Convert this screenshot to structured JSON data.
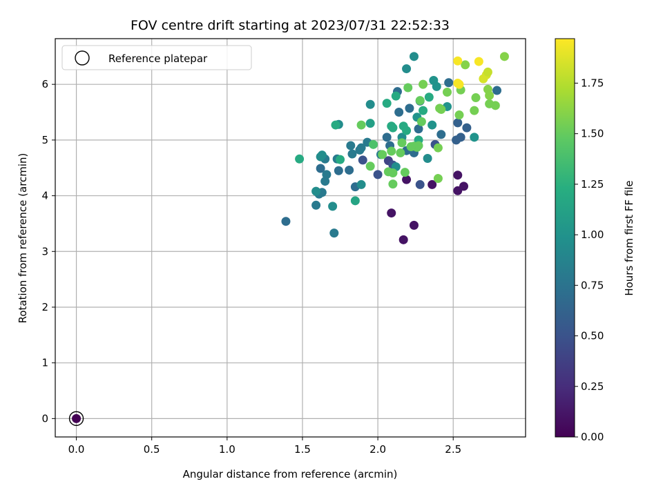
{
  "chart_data": {
    "type": "scatter",
    "title": "FOV centre drift starting at 2023/07/31 22:52:33",
    "xlabel": "Angular distance from reference (arcmin)",
    "ylabel": "Rotation from reference (arcmin)",
    "xlim": [
      -0.14,
      2.98
    ],
    "ylim": [
      -0.33,
      6.82
    ],
    "xticks": [
      0.0,
      0.5,
      1.0,
      1.5,
      2.0,
      2.5
    ],
    "xtick_labels": [
      "0.0",
      "0.5",
      "1.0",
      "1.5",
      "2.0",
      "2.5"
    ],
    "yticks": [
      0,
      1,
      2,
      3,
      4,
      5,
      6
    ],
    "ytick_labels": [
      "0",
      "1",
      "2",
      "3",
      "4",
      "5",
      "6"
    ],
    "grid": true,
    "colormap": "viridis",
    "colorbar": {
      "label": "Hours from first FF file",
      "range": [
        0.0,
        1.97
      ],
      "ticks": [
        0.0,
        0.25,
        0.5,
        0.75,
        1.0,
        1.25,
        1.5,
        1.75
      ],
      "tick_labels": [
        "0.00",
        "0.25",
        "0.50",
        "0.75",
        "1.00",
        "1.25",
        "1.50",
        "1.75"
      ]
    },
    "legend": {
      "position": "upper-left",
      "entries": [
        "Reference platepar"
      ]
    },
    "reference_point": {
      "x": 0.0,
      "y": 0.0,
      "hours": 0.0
    },
    "points": [
      [
        2.09,
        3.69,
        0.1
      ],
      [
        2.24,
        3.47,
        0.1
      ],
      [
        2.17,
        3.21,
        0.1
      ],
      [
        2.19,
        4.29,
        0.1
      ],
      [
        2.36,
        4.2,
        0.1
      ],
      [
        2.53,
        4.37,
        0.1
      ],
      [
        2.53,
        4.09,
        0.1
      ],
      [
        2.57,
        4.17,
        0.1
      ],
      [
        2.07,
        4.63,
        0.4
      ],
      [
        2.1,
        4.55,
        0.5
      ],
      [
        2.28,
        4.2,
        0.5
      ],
      [
        2.0,
        4.38,
        0.5
      ],
      [
        1.9,
        4.64,
        0.5
      ],
      [
        2.38,
        4.92,
        0.5
      ],
      [
        2.53,
        5.31,
        0.6
      ],
      [
        2.52,
        5.0,
        0.6
      ],
      [
        2.55,
        5.05,
        0.6
      ],
      [
        2.59,
        5.22,
        0.6
      ],
      [
        1.39,
        3.54,
        0.7
      ],
      [
        1.85,
        4.16,
        0.7
      ],
      [
        1.74,
        4.45,
        0.7
      ],
      [
        1.81,
        4.46,
        0.7
      ],
      [
        1.62,
        4.49,
        0.7
      ],
      [
        2.06,
        5.05,
        0.7
      ],
      [
        2.08,
        4.9,
        0.7
      ],
      [
        2.19,
        4.81,
        0.7
      ],
      [
        2.24,
        4.77,
        0.7
      ],
      [
        2.14,
        5.5,
        0.7
      ],
      [
        2.13,
        5.87,
        0.7
      ],
      [
        2.28,
        5.7,
        0.7
      ],
      [
        2.21,
        5.57,
        0.7
      ],
      [
        2.27,
        5.2,
        0.7
      ],
      [
        2.42,
        5.1,
        0.7
      ],
      [
        2.47,
        6.03,
        0.7
      ],
      [
        2.79,
        5.89,
        0.7
      ],
      [
        1.65,
        4.26,
        0.8
      ],
      [
        1.66,
        4.38,
        0.8
      ],
      [
        1.59,
        3.83,
        0.8
      ],
      [
        1.61,
        4.03,
        0.8
      ],
      [
        1.63,
        4.06,
        0.8
      ],
      [
        1.71,
        3.33,
        0.8
      ],
      [
        1.88,
        4.82,
        0.8
      ],
      [
        1.82,
        4.9,
        0.8
      ],
      [
        1.93,
        4.96,
        0.8
      ],
      [
        1.89,
        4.86,
        0.8
      ],
      [
        2.02,
        4.74,
        0.8
      ],
      [
        1.83,
        4.75,
        0.8
      ],
      [
        1.65,
        4.66,
        0.8
      ],
      [
        1.73,
        4.66,
        0.8
      ],
      [
        2.24,
        6.5,
        0.95
      ],
      [
        2.19,
        6.28,
        0.95
      ],
      [
        1.95,
        5.64,
        0.95
      ],
      [
        1.74,
        5.28,
        0.95
      ],
      [
        1.63,
        4.73,
        0.95
      ],
      [
        1.62,
        4.7,
        0.95
      ],
      [
        1.59,
        4.08,
        0.95
      ],
      [
        1.7,
        3.81,
        0.95
      ],
      [
        1.85,
        3.91,
        1.15
      ],
      [
        1.89,
        4.2,
        0.95
      ],
      [
        1.95,
        5.3,
        1.1
      ],
      [
        2.16,
        5.05,
        0.95
      ],
      [
        2.12,
        4.52,
        0.95
      ],
      [
        2.33,
        4.67,
        0.95
      ],
      [
        2.37,
        6.07,
        1.0
      ],
      [
        2.39,
        5.96,
        1.0
      ],
      [
        2.36,
        5.27,
        1.0
      ],
      [
        2.46,
        5.6,
        1.0
      ],
      [
        2.64,
        5.05,
        1.0
      ],
      [
        2.26,
        5.41,
        1.0
      ],
      [
        1.48,
        4.66,
        1.2
      ],
      [
        1.72,
        5.27,
        1.2
      ],
      [
        1.75,
        4.65,
        1.2
      ],
      [
        2.09,
        5.25,
        1.2
      ],
      [
        2.1,
        5.22,
        1.2
      ],
      [
        2.19,
        5.17,
        1.2
      ],
      [
        2.17,
        5.25,
        1.2
      ],
      [
        2.3,
        5.53,
        1.2
      ],
      [
        2.27,
        5.0,
        1.2
      ],
      [
        2.12,
        5.79,
        1.2
      ],
      [
        2.06,
        5.66,
        1.2
      ],
      [
        2.34,
        5.77,
        1.2
      ],
      [
        1.89,
        5.27,
        1.5
      ],
      [
        1.97,
        4.92,
        1.4
      ],
      [
        1.95,
        4.53,
        1.5
      ],
      [
        2.03,
        4.74,
        1.5
      ],
      [
        2.09,
        4.8,
        1.5
      ],
      [
        2.07,
        4.43,
        1.5
      ],
      [
        2.1,
        4.41,
        1.5
      ],
      [
        2.15,
        4.77,
        1.5
      ],
      [
        2.18,
        4.42,
        1.5
      ],
      [
        2.1,
        4.21,
        1.5
      ],
      [
        2.16,
        4.95,
        1.5
      ],
      [
        2.24,
        4.89,
        1.5
      ],
      [
        2.26,
        4.87,
        1.5
      ],
      [
        2.27,
        4.9,
        1.5
      ],
      [
        2.22,
        4.88,
        1.5
      ],
      [
        2.29,
        5.33,
        1.5
      ],
      [
        2.2,
        5.94,
        1.5
      ],
      [
        2.28,
        5.71,
        1.5
      ],
      [
        2.3,
        6.0,
        1.55
      ],
      [
        2.4,
        4.86,
        1.55
      ],
      [
        2.41,
        5.57,
        1.55
      ],
      [
        2.42,
        5.55,
        1.55
      ],
      [
        2.4,
        4.31,
        1.55
      ],
      [
        2.46,
        5.86,
        1.55
      ],
      [
        2.54,
        5.45,
        1.55
      ],
      [
        2.55,
        5.9,
        1.55
      ],
      [
        2.64,
        5.53,
        1.55
      ],
      [
        2.65,
        5.76,
        1.55
      ],
      [
        2.74,
        5.65,
        1.55
      ],
      [
        2.78,
        5.62,
        1.55
      ],
      [
        2.73,
        5.91,
        1.6
      ],
      [
        2.74,
        5.8,
        1.6
      ],
      [
        2.84,
        6.5,
        1.6
      ],
      [
        2.58,
        6.35,
        1.6
      ],
      [
        2.7,
        6.1,
        1.85
      ],
      [
        2.72,
        6.17,
        1.85
      ],
      [
        2.73,
        6.22,
        1.8
      ],
      [
        2.53,
        6.42,
        1.95
      ],
      [
        2.67,
        6.41,
        1.95
      ],
      [
        2.53,
        6.02,
        1.95
      ],
      [
        2.54,
        6.0,
        1.95
      ]
    ]
  }
}
